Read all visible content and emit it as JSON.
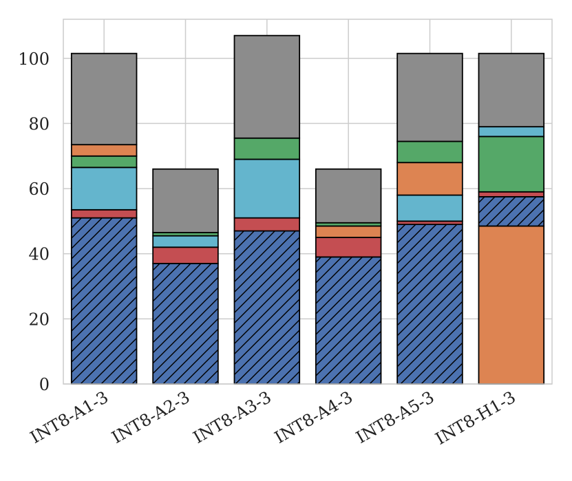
{
  "chart_data": {
    "type": "bar",
    "stacked": true,
    "title": "",
    "xlabel": "",
    "ylabel": "",
    "ylim": [
      0,
      112
    ],
    "yticks": [
      0,
      20,
      40,
      60,
      80,
      100
    ],
    "grid": true,
    "legend": "none",
    "categories": [
      "INT8-A1-3",
      "INT8-A2-3",
      "INT8-A3-3",
      "INT8-A4-3",
      "INT8-A5-3",
      "INT8-H1-3"
    ],
    "series": [
      {
        "name": "blue-hatched",
        "color": "#4c72b0",
        "hatch": true,
        "values": [
          51,
          37,
          47,
          39,
          49,
          0
        ]
      },
      {
        "name": "orange-base",
        "color": "#dd8452",
        "hatch": false,
        "values": [
          0,
          0,
          0,
          0,
          0,
          48.5
        ]
      },
      {
        "name": "blue-hatched-upper",
        "color": "#4c72b0",
        "hatch": true,
        "values": [
          0,
          0,
          0,
          0,
          0,
          9
        ]
      },
      {
        "name": "red",
        "color": "#c44e52",
        "hatch": false,
        "values": [
          2.5,
          5,
          4,
          6,
          1,
          1.5
        ]
      },
      {
        "name": "cyan",
        "color": "#64b5cd",
        "hatch": false,
        "values": [
          13,
          3.5,
          18,
          0,
          8,
          0
        ]
      },
      {
        "name": "orange",
        "color": "#dd8452",
        "hatch": false,
        "values": [
          0,
          0,
          0,
          3.5,
          10,
          0
        ]
      },
      {
        "name": "green",
        "color": "#55a868",
        "hatch": false,
        "values": [
          3.5,
          1,
          6.5,
          1,
          6.5,
          17
        ]
      },
      {
        "name": "orange-upper",
        "color": "#dd8452",
        "hatch": false,
        "values": [
          3.5,
          0,
          0,
          0,
          0,
          0
        ]
      },
      {
        "name": "cyan-upper",
        "color": "#64b5cd",
        "hatch": false,
        "values": [
          0,
          0,
          0,
          0,
          0,
          3
        ]
      },
      {
        "name": "gray",
        "color": "#8c8c8c",
        "hatch": false,
        "values": [
          28,
          19.5,
          31.5,
          16.5,
          27,
          22.5
        ]
      }
    ]
  }
}
